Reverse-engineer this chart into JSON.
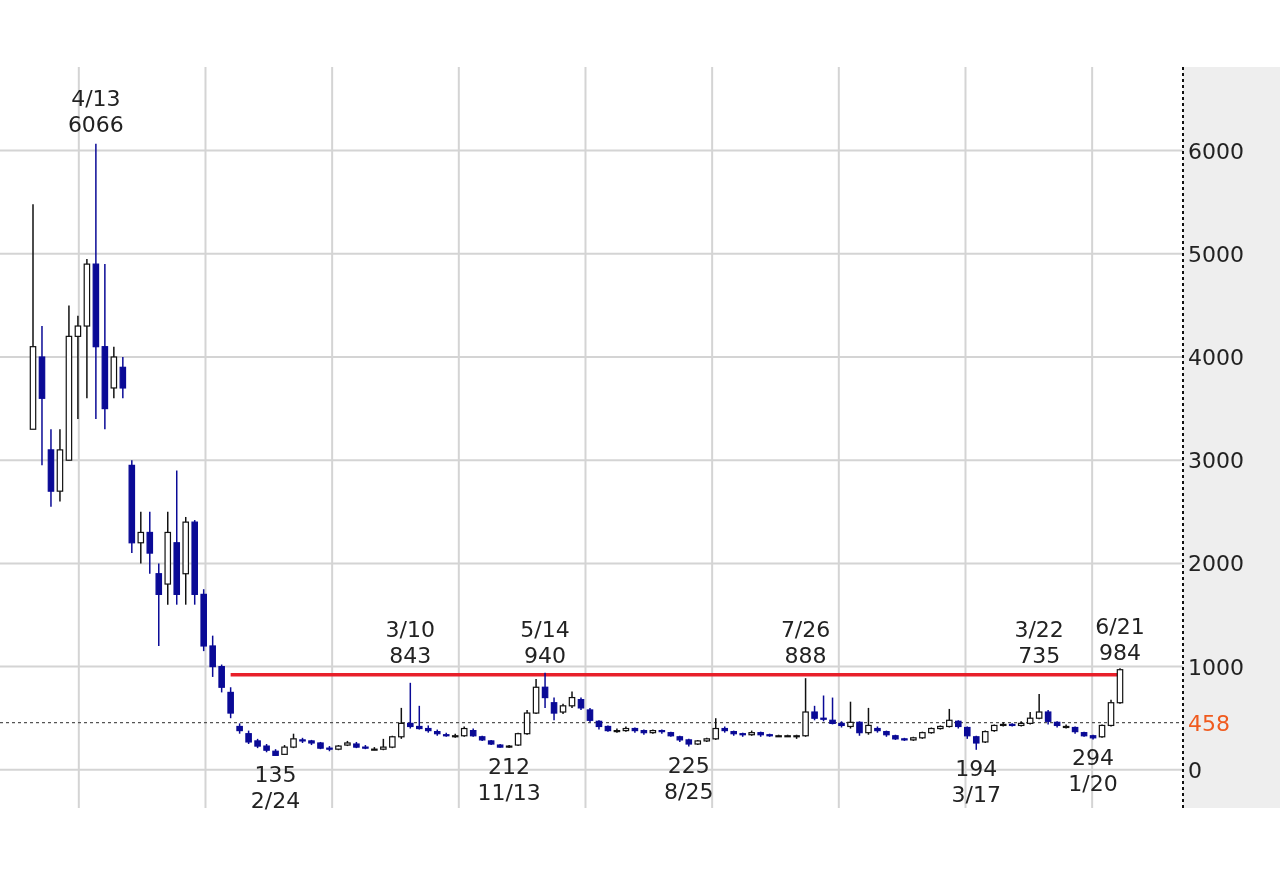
{
  "chart_data": {
    "type": "candlestick",
    "categories": [
      null,
      null,
      null,
      null,
      null,
      null,
      null,
      null,
      null,
      null,
      null,
      null,
      null,
      null,
      null,
      null,
      null,
      null,
      null,
      null,
      null,
      null,
      null,
      null,
      null,
      null,
      null,
      null,
      null,
      null,
      null,
      null,
      null,
      null,
      null,
      null,
      null,
      null,
      null,
      null,
      null,
      null,
      null,
      null,
      null,
      null,
      null,
      null,
      null,
      null,
      null,
      null,
      null,
      null,
      null,
      null,
      null,
      null,
      null,
      null,
      null,
      null,
      null,
      null,
      null,
      null,
      null,
      null,
      null,
      null,
      null,
      null,
      null,
      null,
      null,
      null,
      null,
      null,
      null,
      null,
      null,
      null,
      null,
      null,
      null,
      null,
      null,
      null,
      null,
      null,
      null,
      null,
      null,
      null,
      null,
      null,
      null,
      null,
      null,
      null,
      null,
      null,
      null,
      null,
      null,
      null,
      null,
      null,
      null,
      null,
      null,
      null,
      null,
      null,
      null,
      null,
      null,
      null,
      null,
      null,
      null,
      null
    ],
    "ohlc": [
      [
        3300,
        5480,
        3300,
        4100
      ],
      [
        4000,
        4300,
        2950,
        3600
      ],
      [
        3100,
        3300,
        2550,
        2700
      ],
      [
        2700,
        3300,
        2600,
        3100
      ],
      [
        3000,
        4500,
        3000,
        4200
      ],
      [
        4200,
        4400,
        3400,
        4300
      ],
      [
        4300,
        4950,
        3600,
        4900
      ],
      [
        4900,
        6066,
        3400,
        4100
      ],
      [
        4100,
        4900,
        3300,
        3500
      ],
      [
        3700,
        4100,
        3600,
        4000
      ],
      [
        3900,
        4000,
        3600,
        3700
      ],
      [
        2950,
        3000,
        2100,
        2200
      ],
      [
        2200,
        2500,
        2000,
        2300
      ],
      [
        2300,
        2500,
        1900,
        2100
      ],
      [
        1900,
        2000,
        1200,
        1700
      ],
      [
        1800,
        2500,
        1600,
        2300
      ],
      [
        2200,
        2900,
        1600,
        1700
      ],
      [
        1900,
        2450,
        1600,
        2400
      ],
      [
        2400,
        2420,
        1600,
        1700
      ],
      [
        1700,
        1750,
        1150,
        1200
      ],
      [
        1200,
        1300,
        900,
        1000
      ],
      [
        1000,
        1020,
        750,
        800
      ],
      [
        750,
        800,
        500,
        550
      ],
      [
        420,
        450,
        350,
        380
      ],
      [
        350,
        380,
        250,
        270
      ],
      [
        280,
        300,
        210,
        230
      ],
      [
        230,
        250,
        170,
        190
      ],
      [
        180,
        200,
        135,
        140
      ],
      [
        150,
        240,
        145,
        220
      ],
      [
        220,
        350,
        210,
        300
      ],
      [
        290,
        310,
        260,
        280
      ],
      [
        280,
        290,
        240,
        260
      ],
      [
        260,
        270,
        200,
        210
      ],
      [
        210,
        230,
        180,
        200
      ],
      [
        200,
        240,
        190,
        230
      ],
      [
        240,
        280,
        230,
        260
      ],
      [
        250,
        270,
        210,
        220
      ],
      [
        220,
        240,
        200,
        210
      ],
      [
        200,
        220,
        190,
        200
      ],
      [
        200,
        300,
        190,
        220
      ],
      [
        220,
        330,
        210,
        320
      ],
      [
        320,
        600,
        300,
        450
      ],
      [
        450,
        843,
        400,
        420
      ],
      [
        420,
        620,
        390,
        400
      ],
      [
        400,
        430,
        360,
        380
      ],
      [
        370,
        390,
        330,
        350
      ],
      [
        340,
        360,
        320,
        330
      ],
      [
        330,
        350,
        310,
        330
      ],
      [
        330,
        420,
        320,
        400
      ],
      [
        380,
        400,
        320,
        330
      ],
      [
        320,
        330,
        280,
        290
      ],
      [
        280,
        290,
        240,
        250
      ],
      [
        240,
        250,
        215,
        220
      ],
      [
        220,
        240,
        212,
        230
      ],
      [
        240,
        360,
        230,
        350
      ],
      [
        350,
        580,
        340,
        550
      ],
      [
        550,
        880,
        540,
        800
      ],
      [
        800,
        940,
        600,
        700
      ],
      [
        650,
        700,
        480,
        550
      ],
      [
        560,
        640,
        540,
        620
      ],
      [
        620,
        760,
        600,
        700
      ],
      [
        680,
        700,
        580,
        600
      ],
      [
        580,
        600,
        460,
        480
      ],
      [
        470,
        480,
        390,
        420
      ],
      [
        420,
        430,
        370,
        380
      ],
      [
        380,
        400,
        360,
        380
      ],
      [
        380,
        420,
        370,
        400
      ],
      [
        400,
        410,
        360,
        380
      ],
      [
        380,
        390,
        340,
        360
      ],
      [
        360,
        390,
        350,
        380
      ],
      [
        380,
        390,
        350,
        370
      ],
      [
        360,
        370,
        320,
        330
      ],
      [
        320,
        330,
        270,
        290
      ],
      [
        290,
        300,
        225,
        250
      ],
      [
        250,
        290,
        240,
        280
      ],
      [
        280,
        310,
        270,
        300
      ],
      [
        300,
        500,
        290,
        400
      ],
      [
        400,
        420,
        360,
        380
      ],
      [
        370,
        380,
        330,
        350
      ],
      [
        350,
        360,
        320,
        340
      ],
      [
        340,
        380,
        330,
        360
      ],
      [
        360,
        370,
        320,
        340
      ],
      [
        340,
        350,
        320,
        330
      ],
      [
        330,
        340,
        320,
        330
      ],
      [
        330,
        340,
        320,
        330
      ],
      [
        330,
        340,
        300,
        330
      ],
      [
        330,
        888,
        320,
        560
      ],
      [
        560,
        620,
        480,
        500
      ],
      [
        500,
        720,
        470,
        490
      ],
      [
        480,
        700,
        440,
        450
      ],
      [
        450,
        470,
        410,
        430
      ],
      [
        420,
        660,
        400,
        460
      ],
      [
        460,
        470,
        330,
        360
      ],
      [
        360,
        600,
        340,
        430
      ],
      [
        400,
        420,
        360,
        380
      ],
      [
        370,
        380,
        320,
        340
      ],
      [
        330,
        340,
        290,
        300
      ],
      [
        300,
        310,
        280,
        290
      ],
      [
        290,
        320,
        280,
        310
      ],
      [
        310,
        370,
        300,
        360
      ],
      [
        360,
        410,
        350,
        400
      ],
      [
        400,
        430,
        390,
        420
      ],
      [
        420,
        590,
        410,
        480
      ],
      [
        470,
        480,
        400,
        420
      ],
      [
        410,
        420,
        300,
        330
      ],
      [
        320,
        330,
        194,
        260
      ],
      [
        270,
        380,
        260,
        370
      ],
      [
        380,
        440,
        370,
        430
      ],
      [
        430,
        460,
        420,
        440
      ],
      [
        440,
        450,
        420,
        430
      ],
      [
        430,
        470,
        420,
        450
      ],
      [
        450,
        560,
        440,
        500
      ],
      [
        500,
        735,
        490,
        560
      ],
      [
        560,
        580,
        440,
        470
      ],
      [
        460,
        470,
        410,
        430
      ],
      [
        420,
        440,
        400,
        420
      ],
      [
        410,
        420,
        350,
        370
      ],
      [
        360,
        370,
        320,
        330
      ],
      [
        330,
        340,
        294,
        310
      ],
      [
        320,
        440,
        310,
        430
      ],
      [
        430,
        680,
        420,
        650
      ],
      [
        650,
        984,
        640,
        970
      ]
    ],
    "series": [
      {
        "type": "line",
        "color": "#e8202a",
        "values": [
          null,
          null,
          null,
          null,
          null,
          null,
          null,
          null,
          null,
          null,
          null,
          null,
          null,
          null,
          null,
          null,
          null,
          null,
          null,
          null,
          null,
          null,
          920,
          920,
          920,
          920,
          920,
          920,
          920,
          920,
          920,
          920,
          920,
          920,
          920,
          920,
          920,
          920,
          920,
          920,
          920,
          920,
          920,
          920,
          920,
          920,
          920,
          920,
          920,
          920,
          920,
          920,
          920,
          920,
          920,
          920,
          920,
          920,
          920,
          920,
          920,
          920,
          920,
          920,
          920,
          920,
          920,
          920,
          920,
          920,
          920,
          920,
          920,
          920,
          920,
          920,
          920,
          920,
          920,
          920,
          920,
          920,
          920,
          920,
          920,
          920,
          920,
          920,
          920,
          920,
          920,
          920,
          920,
          920,
          920,
          920,
          920,
          920,
          920,
          920,
          920,
          920,
          920,
          920,
          920,
          920,
          920,
          920,
          920,
          920,
          920,
          920,
          920,
          920,
          920,
          920,
          920,
          920,
          920,
          920,
          920,
          920
        ]
      }
    ],
    "ylim": [
      -370,
      6810
    ],
    "yticks": [
      0,
      1000,
      2000,
      3000,
      4000,
      5000,
      6000
    ],
    "grid": true,
    "ref_lines": [
      {
        "axis": "y",
        "value": 458,
        "label": "458",
        "color": "#555555",
        "line_style": "dotted"
      }
    ],
    "annotations": [
      {
        "text": "4/13\n6066",
        "y": 6066
      },
      {
        "text": "135\n2/24",
        "y": 135
      },
      {
        "text": "3/10\n843",
        "y": 843
      },
      {
        "text": "212\n11/13",
        "y": 212
      },
      {
        "text": "5/14\n940",
        "y": 940
      },
      {
        "text": "225\n8/25",
        "y": 225
      },
      {
        "text": "7/26\n888",
        "y": 888
      },
      {
        "text": "194\n3/17",
        "y": 194
      },
      {
        "text": "3/22\n735",
        "y": 735
      },
      {
        "text": "294\n1/20",
        "y": 294
      },
      {
        "text": "6/21\n984",
        "y": 984
      }
    ]
  }
}
